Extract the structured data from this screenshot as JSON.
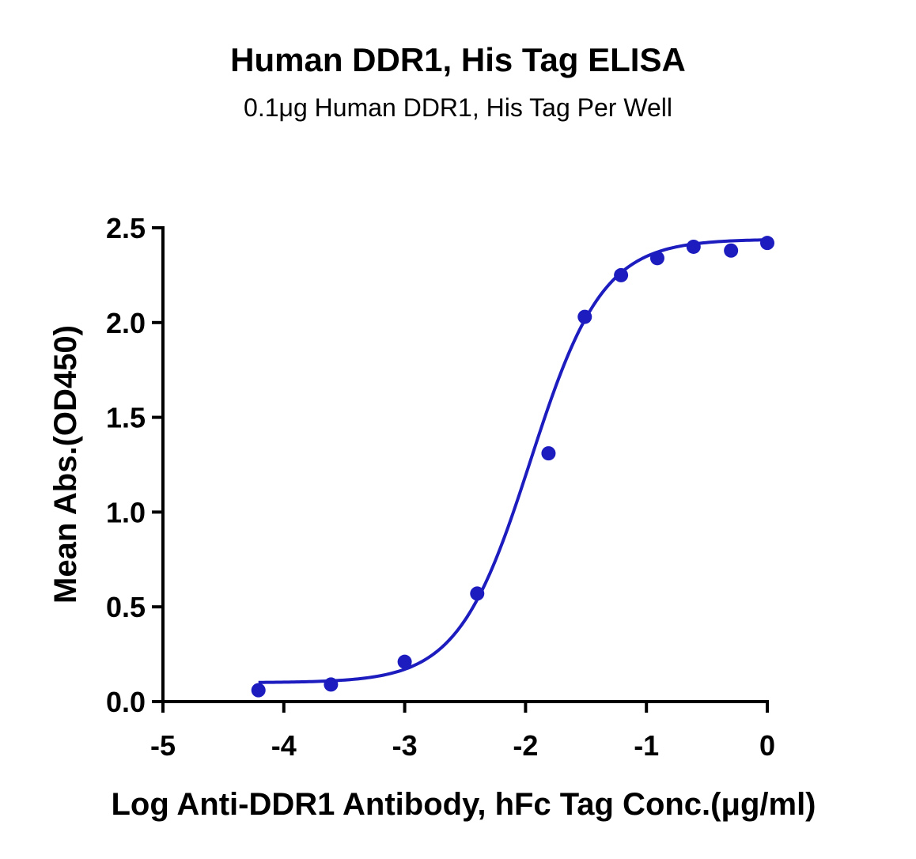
{
  "chart_data": {
    "type": "scatter",
    "title": "Human DDR1, His Tag ELISA",
    "subtitle": "0.1μg Human DDR1, His Tag Per Well",
    "xlabel": "Log Anti-DDR1 Antibody, hFc Tag Conc.(μg/ml)",
    "ylabel": "Mean Abs.(OD450)",
    "xlim": [
      -5,
      0
    ],
    "ylim": [
      0,
      2.5
    ],
    "x_ticks": [
      -5,
      -4,
      -3,
      -2,
      -1,
      0
    ],
    "x_tick_labels": [
      "-5",
      "-4",
      "-3",
      "-2",
      "-1",
      "0"
    ],
    "y_ticks": [
      0,
      0.5,
      1.0,
      1.5,
      2.0,
      2.5
    ],
    "y_tick_labels": [
      "0.0",
      "0.5",
      "1.0",
      "1.5",
      "2.0",
      "2.5"
    ],
    "grid": false,
    "series": [
      {
        "points": {
          "x": [
            -4.21,
            -3.61,
            -3.0,
            -2.4,
            -1.81,
            -1.51,
            -1.21,
            -0.91,
            -0.61,
            -0.3,
            0.0
          ],
          "y": [
            0.06,
            0.09,
            0.21,
            0.57,
            1.31,
            2.03,
            2.25,
            2.34,
            2.4,
            2.38,
            2.42
          ]
        },
        "fit": {
          "model": "4PL",
          "bottom": 0.1,
          "top": 2.44,
          "log_ec50": -1.96,
          "hill": 1.45,
          "x_range": [
            -4.21,
            0.0
          ]
        }
      }
    ],
    "colors": {
      "series": "#1c1cbf",
      "axis": "#000000"
    }
  }
}
